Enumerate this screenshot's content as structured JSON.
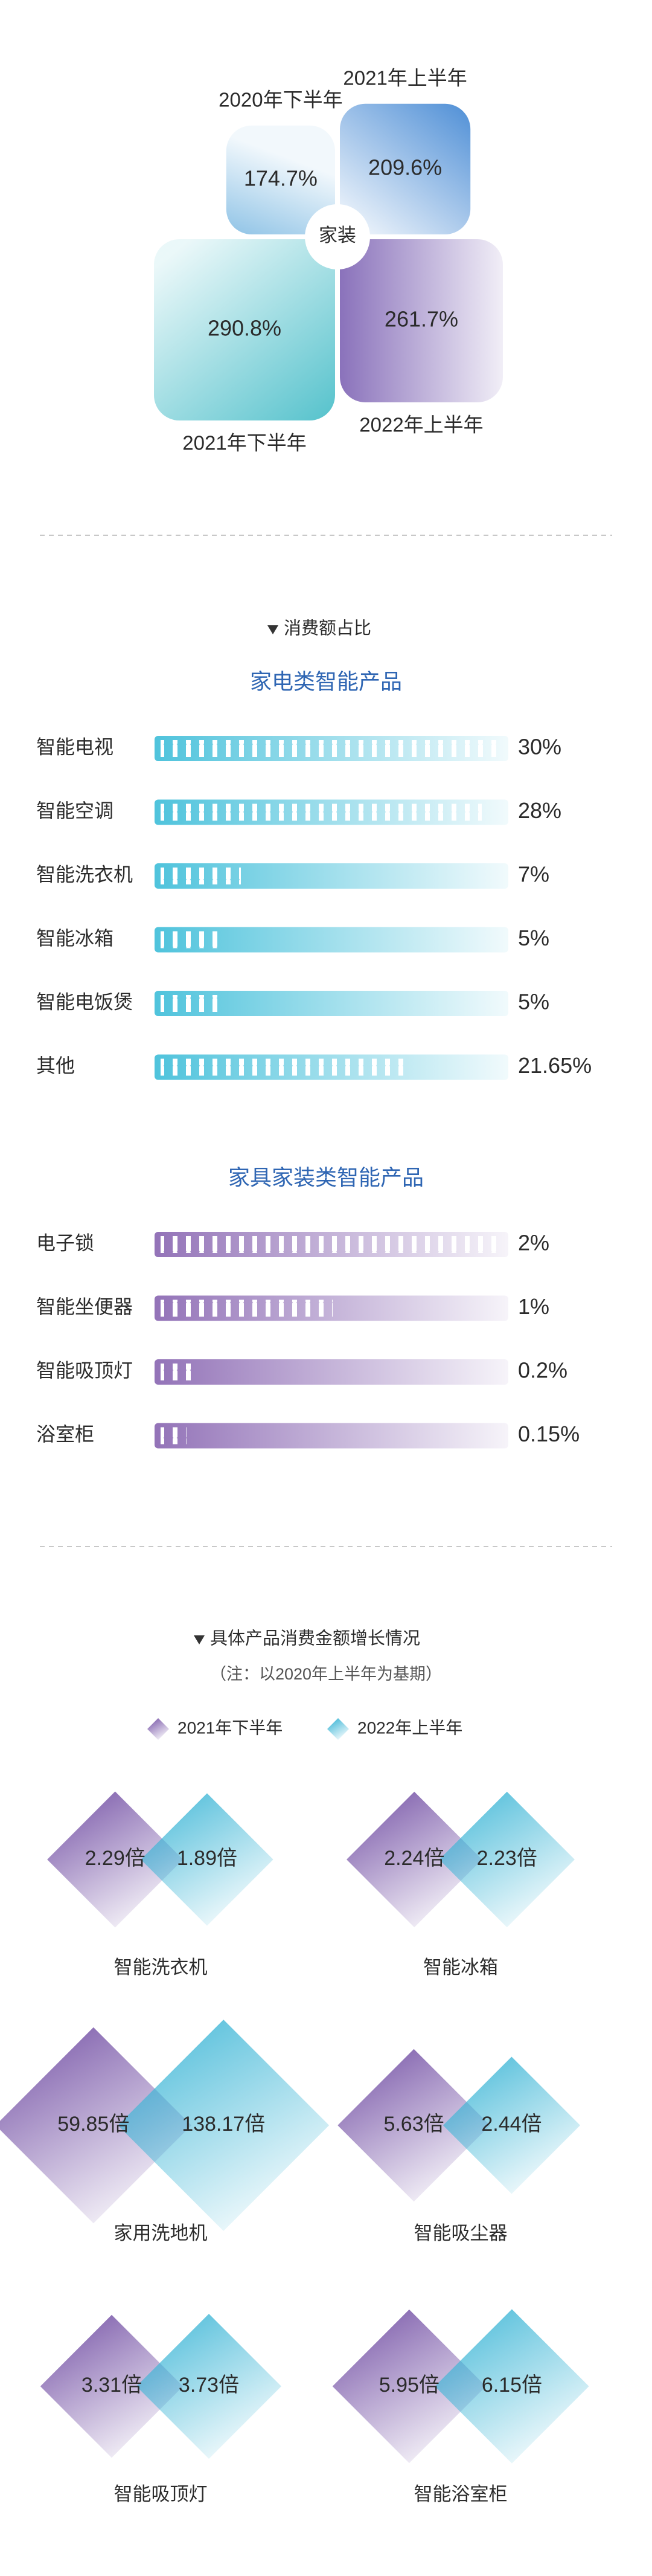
{
  "chart_data": [
    {
      "type": "quadrant",
      "center_label": "家装",
      "categories": [
        "2020年下半年",
        "2021年上半年",
        "2021年下半年",
        "2022年上半年"
      ],
      "values": [
        174.7,
        209.6,
        290.8,
        261.7
      ],
      "value_labels": [
        "174.7%",
        "209.6%",
        "290.8%",
        "261.7%"
      ],
      "colors": [
        "#8fc3e6",
        "#4f8fd6",
        "#55c2cc",
        "#8a72bb"
      ]
    },
    {
      "type": "bar",
      "heading": "消费额占比",
      "title": "家电类智能产品",
      "color": "#4fc3dc",
      "categories": [
        "智能电视",
        "智能空调",
        "智能洗衣机",
        "智能冰箱",
        "智能电饭煲",
        "其他"
      ],
      "values": [
        30,
        28,
        7,
        5,
        5,
        21.65
      ],
      "value_labels": [
        "30%",
        "28%",
        "7%",
        "5%",
        "5%",
        "21.65%"
      ]
    },
    {
      "type": "bar",
      "title": "家具家装类智能产品",
      "color": "#9373b8",
      "categories": [
        "电子锁",
        "智能坐便器",
        "智能吸顶灯",
        "浴室柜"
      ],
      "values": [
        2,
        1,
        0.2,
        0.15
      ],
      "value_labels": [
        "2%",
        "1%",
        "0.2%",
        "0.15%"
      ]
    },
    {
      "type": "diamond",
      "heading": "具体产品消费金额增长情况",
      "note": "（注：以2020年上半年为基期）",
      "categories": [
        "智能洗衣机",
        "智能冰箱",
        "家用洗地机",
        "智能吸尘器",
        "智能吸顶灯",
        "智能浴室柜"
      ],
      "series": [
        {
          "name": "2021年下半年",
          "color": "#7d5cab",
          "values": [
            2.29,
            2.24,
            59.85,
            5.63,
            3.31,
            5.95
          ],
          "value_labels": [
            "2.29倍",
            "2.24倍",
            "59.85倍",
            "5.63倍",
            "3.31倍",
            "5.95倍"
          ]
        },
        {
          "name": "2022年上半年",
          "color": "#3db6d6",
          "values": [
            1.89,
            2.23,
            138.17,
            2.44,
            3.73,
            6.15
          ],
          "value_labels": [
            "1.89倍",
            "2.23倍",
            "138.17倍",
            "2.44倍",
            "3.73倍",
            "6.15倍"
          ]
        }
      ]
    }
  ]
}
